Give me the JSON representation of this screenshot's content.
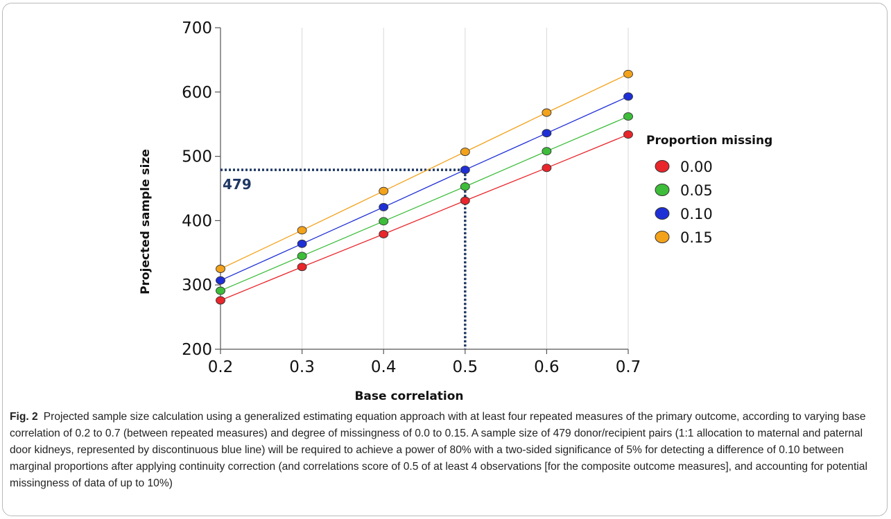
{
  "chart_data": {
    "type": "line",
    "xlabel": "Base correlation",
    "ylabel": "Projected sample size",
    "x": [
      0.2,
      0.3,
      0.4,
      0.5,
      0.6,
      0.7
    ],
    "x_tick_labels": [
      "0.2",
      "0.3",
      "0.4",
      "0.5",
      "0.6",
      "0.7"
    ],
    "xlim": [
      0.2,
      0.7
    ],
    "ylim": [
      200,
      700
    ],
    "y_tick_labels": [
      "200",
      "300",
      "400",
      "500",
      "600",
      "700"
    ],
    "y_ticks": [
      200,
      300,
      400,
      500,
      600,
      700
    ],
    "grid": "vertical",
    "legend": {
      "title": "Proportion missing",
      "placement": "right"
    },
    "series": [
      {
        "name": "0.00",
        "color": "#e8262b",
        "values": [
          276,
          328,
          379,
          431,
          482,
          534
        ]
      },
      {
        "name": "0.05",
        "color": "#3dbd3a",
        "values": [
          291,
          345,
          399,
          453,
          508,
          562
        ]
      },
      {
        "name": "0.10",
        "color": "#1f2fd6",
        "values": [
          307,
          364,
          421,
          479,
          536,
          593
        ]
      },
      {
        "name": "0.15",
        "color": "#f3a21c",
        "values": [
          325,
          385,
          446,
          507,
          568,
          628
        ]
      }
    ],
    "annotation": {
      "label": "479",
      "x": 0.5,
      "y": 479,
      "color": "#1f3864"
    }
  },
  "caption": {
    "fig_label": "Fig. 2",
    "text": "Projected sample size calculation using a generalized estimating equation approach with at least four repeated measures of the primary outcome, according to varying base correlation of 0.2 to 0.7 (between repeated measures) and degree of missingness of 0.0 to 0.15. A sample size of 479 donor/recipient pairs (1:1 allocation to maternal and paternal door kidneys, represented by discontinuous blue line) will be required to achieve a power of 80% with a two-sided significance of 5% for detecting a difference of 0.10 between marginal proportions after applying continuity correction (and correlations score of 0.5 of at least 4 observations [for the composite outcome measures], and accounting for potential missingness of data of up to 10%)"
  }
}
